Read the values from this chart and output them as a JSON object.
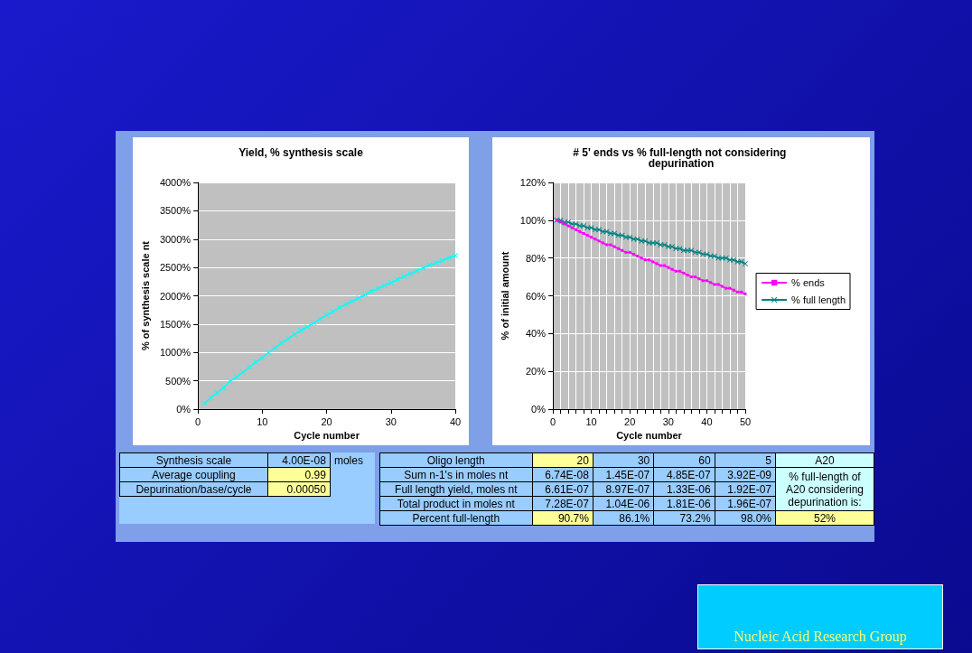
{
  "chart_data": [
    {
      "type": "line",
      "title": "Yield, % synthesis scale",
      "xlabel": "Cycle number",
      "ylabel": "% of synthesis scale nt",
      "x": [
        1,
        2,
        3,
        4,
        5,
        6,
        7,
        8,
        9,
        10,
        11,
        12,
        13,
        14,
        15,
        16,
        17,
        18,
        19,
        20,
        21,
        22,
        23,
        24,
        25,
        26,
        27,
        28,
        29,
        30,
        31,
        32,
        33,
        34,
        35,
        36,
        37,
        38,
        39,
        40
      ],
      "series": [
        {
          "color": "#00ffff",
          "marker": "cross",
          "values": [
            100,
            200,
            290,
            380,
            490,
            570,
            650,
            740,
            830,
            910,
            1000,
            1080,
            1170,
            1240,
            1320,
            1390,
            1450,
            1520,
            1590,
            1660,
            1720,
            1790,
            1850,
            1900,
            1960,
            2020,
            2080,
            2130,
            2180,
            2230,
            2290,
            2340,
            2390,
            2440,
            2490,
            2540,
            2580,
            2620,
            2670,
            2710
          ]
        }
      ],
      "xlim": [
        0,
        40
      ],
      "xticks": [
        0,
        10,
        20,
        30,
        40
      ],
      "ylim": [
        0,
        4000
      ],
      "yticks": [
        {
          "value": 0,
          "label": "0%"
        },
        {
          "value": 500,
          "label": "500%"
        },
        {
          "value": 1000,
          "label": "1000%"
        },
        {
          "value": 1500,
          "label": "1500%"
        },
        {
          "value": 2000,
          "label": "2000%"
        },
        {
          "value": 2500,
          "label": "2500%"
        },
        {
          "value": 3000,
          "label": "3000%"
        },
        {
          "value": 3500,
          "label": "3500%"
        },
        {
          "value": 4000,
          "label": "4000%"
        }
      ],
      "grid": "y",
      "legend": false
    },
    {
      "type": "line",
      "title": "# 5' ends vs % full-length not considering depurination",
      "xlabel": "Cycle number",
      "ylabel": "% of initial amount",
      "x": [
        1,
        2,
        3,
        4,
        5,
        6,
        7,
        8,
        9,
        10,
        11,
        12,
        13,
        14,
        15,
        16,
        17,
        18,
        19,
        20,
        21,
        22,
        23,
        24,
        25,
        26,
        27,
        28,
        29,
        30,
        31,
        32,
        33,
        34,
        35,
        36,
        37,
        38,
        39,
        40,
        41,
        42,
        43,
        44,
        45,
        46,
        47,
        48,
        49,
        50
      ],
      "series": [
        {
          "name": "% ends",
          "color": "#ff00ff",
          "marker": "square",
          "values": [
            100,
            99,
            98,
            97,
            96,
            95,
            94,
            93,
            92,
            91,
            90,
            89,
            88,
            87,
            87,
            86,
            85,
            84,
            83,
            83,
            82,
            81,
            80,
            79,
            79,
            78,
            77,
            76,
            76,
            75,
            74,
            73,
            73,
            72,
            71,
            70,
            70,
            69,
            68,
            68,
            67,
            66,
            66,
            65,
            64,
            64,
            63,
            62,
            62,
            61
          ]
        },
        {
          "name": "% full length",
          "color": "#008080",
          "marker": "cross",
          "values": [
            100,
            100,
            99,
            99,
            98,
            98,
            97,
            97,
            96,
            96,
            95,
            95,
            94,
            94,
            93,
            93,
            92,
            92,
            91,
            91,
            90,
            90,
            89,
            89,
            88,
            88,
            88,
            87,
            87,
            86,
            86,
            85,
            85,
            84,
            84,
            84,
            83,
            83,
            82,
            82,
            81,
            81,
            80,
            80,
            80,
            79,
            79,
            78,
            78,
            77
          ]
        }
      ],
      "xlim": [
        0,
        50
      ],
      "xticks": [
        0,
        {
          "value": 2,
          "label": null
        },
        {
          "value": 4,
          "label": null
        },
        {
          "value": 6,
          "label": null
        },
        {
          "value": 8,
          "label": null
        },
        10,
        {
          "value": 12,
          "label": null
        },
        {
          "value": 14,
          "label": null
        },
        {
          "value": 16,
          "label": null
        },
        {
          "value": 18,
          "label": null
        },
        20,
        {
          "value": 22,
          "label": null
        },
        {
          "value": 24,
          "label": null
        },
        {
          "value": 26,
          "label": null
        },
        {
          "value": 28,
          "label": null
        },
        30,
        {
          "value": 32,
          "label": null
        },
        {
          "value": 34,
          "label": null
        },
        {
          "value": 36,
          "label": null
        },
        {
          "value": 38,
          "label": null
        },
        40,
        {
          "value": 42,
          "label": null
        },
        {
          "value": 44,
          "label": null
        },
        {
          "value": 46,
          "label": null
        },
        {
          "value": 48,
          "label": null
        },
        50
      ],
      "ylim": [
        0,
        120
      ],
      "yticks": [
        {
          "value": 0,
          "label": "0%"
        },
        {
          "value": 20,
          "label": "20%"
        },
        {
          "value": 40,
          "label": "40%"
        },
        {
          "value": 60,
          "label": "60%"
        },
        {
          "value": 80,
          "label": "80%"
        },
        {
          "value": 100,
          "label": "100%"
        },
        {
          "value": 120,
          "label": "120%"
        }
      ],
      "grid": true,
      "legend": "right"
    },
    {
      "type": "other",
      "annotations": [
        "Synthesis scale",
        "4.00E-08",
        "moles",
        "Average coupling",
        "0.99",
        "Depurination/base/cycle",
        "0.00050",
        "Oligo length",
        "20",
        "30",
        "60",
        "5",
        "Sum n-1's in moles nt",
        "6.74E-08",
        "1.45E-07",
        "4.85E-07",
        "3.92E-09",
        "Full length yield, moles nt",
        "6.61E-07",
        "8.97E-07",
        "1.33E-06",
        "1.92E-07",
        "Total product in moles nt",
        "7.28E-07",
        "1.04E-06",
        "1.81E-06",
        "1.96E-07",
        "Percent full-length",
        "90.7%",
        "86.1%",
        "73.2%",
        "98.0%",
        "A20",
        "% full-length of A20 considering depurination is:",
        "52%",
        "Nucleic Acid Research Group"
      ]
    }
  ]
}
